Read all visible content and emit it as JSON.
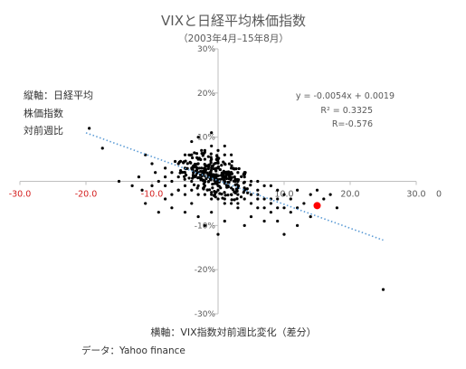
{
  "chart_data": {
    "type": "scatter",
    "title": "VIXと日経平均株価指数",
    "subtitle": "（2003年4月–15年8月）",
    "ylabel_lines": [
      "縦軸：日経平均",
      "株価指数",
      "対前週比"
    ],
    "xlabel": "横軸：VIX指数対前週比変化（差分）",
    "source": "データ：Yahoo finance",
    "xlim": [
      -30,
      30
    ],
    "ylim": [
      -30,
      30
    ],
    "x_ticks": [
      {
        "value": -30,
        "label": "-30.0"
      },
      {
        "value": -20,
        "label": "-20.0"
      },
      {
        "value": -10,
        "label": "-10.0"
      },
      {
        "value": 10,
        "label": "10.0"
      },
      {
        "value": 20,
        "label": "20.0"
      },
      {
        "value": 30,
        "label": "30.0"
      }
    ],
    "x_axis_stray_label": "0",
    "y_ticks": [
      {
        "value": 30,
        "label": "30%"
      },
      {
        "value": 20,
        "label": "20%"
      },
      {
        "value": 10,
        "label": "10%"
      },
      {
        "value": -10,
        "label": "-10%"
      },
      {
        "value": -20,
        "label": "-20%"
      },
      {
        "value": -30,
        "label": "-30%"
      }
    ],
    "grid": false,
    "trendline": {
      "equation": "y = -0.0054x + 0.0019",
      "r_squared": "R² = 0.3325",
      "r": "R=-0.576",
      "slope": -0.54,
      "intercept": 0.19,
      "x_range": [
        -20,
        25
      ]
    },
    "highlight_point": {
      "x": 15,
      "y": -5.5,
      "color": "#ff0000"
    },
    "colors": {
      "points": "#000000",
      "trendline": "#5b9bd5",
      "axes": "#bfbfbf",
      "red_labels": "#d42020"
    },
    "points": [
      [
        -19.5,
        12
      ],
      [
        -17.5,
        7.5
      ],
      [
        -11,
        6
      ],
      [
        -10,
        4
      ],
      [
        -6.5,
        4.5
      ],
      [
        -8,
        3
      ],
      [
        -12,
        1
      ],
      [
        -9,
        0
      ],
      [
        -10,
        -1
      ],
      [
        -6,
        -2
      ],
      [
        -8,
        -4
      ],
      [
        -4,
        -5
      ],
      [
        -7,
        0
      ],
      [
        -5,
        2
      ],
      [
        -3,
        4
      ],
      [
        -5,
        6
      ],
      [
        -4,
        9
      ],
      [
        -3,
        10
      ],
      [
        -2.5,
        7
      ],
      [
        -2,
        5
      ],
      [
        -1,
        11
      ],
      [
        -1,
        8
      ],
      [
        0,
        7
      ],
      [
        1,
        8
      ],
      [
        2,
        6
      ],
      [
        -3.5,
        1
      ],
      [
        -2,
        -3
      ],
      [
        -1,
        -4
      ],
      [
        1,
        -5
      ],
      [
        3,
        -6
      ],
      [
        5,
        -5
      ],
      [
        6,
        -4
      ],
      [
        8,
        -4
      ],
      [
        9,
        -6
      ],
      [
        11,
        -4
      ],
      [
        12,
        -6
      ],
      [
        13,
        -5
      ],
      [
        18,
        -6
      ],
      [
        10,
        -12
      ],
      [
        5,
        -8
      ],
      [
        4,
        -10
      ],
      [
        7,
        -9
      ],
      [
        1,
        -9
      ],
      [
        -1,
        -7
      ],
      [
        25,
        -24.5
      ],
      [
        -15,
        0
      ],
      [
        -13,
        -1
      ],
      [
        -11.5,
        -2
      ],
      [
        -9.5,
        2
      ],
      [
        -7,
        -6
      ],
      [
        -5,
        -7
      ],
      [
        -3,
        -8
      ],
      [
        0,
        -12
      ],
      [
        -2,
        -10
      ],
      [
        3,
        -3
      ],
      [
        2,
        2
      ],
      [
        4,
        1
      ],
      [
        6,
        -2
      ],
      [
        8,
        -1
      ],
      [
        9,
        -2
      ],
      [
        10,
        -3
      ],
      [
        12,
        -2
      ],
      [
        14,
        -3
      ],
      [
        15,
        -2
      ],
      [
        16,
        -4
      ],
      [
        17,
        -3
      ],
      [
        2,
        -1.5
      ],
      [
        3,
        0
      ],
      [
        4,
        -2
      ],
      [
        5,
        0
      ],
      [
        6,
        0
      ],
      [
        7,
        -1
      ],
      [
        0,
        -1
      ],
      [
        1,
        0
      ],
      [
        -1,
        1
      ],
      [
        -2,
        2
      ],
      [
        -3,
        -1
      ],
      [
        -4,
        0
      ],
      [
        -5,
        -1
      ],
      [
        -6,
        1
      ],
      [
        0,
        3
      ],
      [
        1,
        4
      ],
      [
        2,
        3
      ],
      [
        -1,
        3
      ],
      [
        -2,
        -1
      ],
      [
        -3,
        2
      ],
      [
        0,
        0
      ],
      [
        0.5,
        0.5
      ],
      [
        1.5,
        -1
      ],
      [
        -0.5,
        -0.5
      ],
      [
        2.5,
        1
      ],
      [
        -1.5,
        1.5
      ],
      [
        1,
        2
      ],
      [
        -2,
        0
      ],
      [
        3,
        -1.5
      ],
      [
        -2.5,
        3
      ],
      [
        0,
        -2
      ],
      [
        2,
        -3
      ],
      [
        -1,
        -2.5
      ],
      [
        1,
        1
      ],
      [
        -4,
        3
      ],
      [
        4,
        -4
      ],
      [
        5,
        -3
      ],
      [
        -5,
        3
      ],
      [
        6,
        -3
      ],
      [
        -6,
        4
      ],
      [
        7,
        -4
      ],
      [
        -7,
        2
      ],
      [
        8,
        -5
      ],
      [
        -8,
        1
      ],
      [
        9,
        -4
      ],
      [
        10,
        -6
      ],
      [
        11,
        -7
      ],
      [
        -3,
        5
      ],
      [
        -4,
        6
      ],
      [
        -2,
        7
      ],
      [
        3,
        2
      ],
      [
        4,
        2
      ],
      [
        -1,
        5
      ],
      [
        0,
        5
      ],
      [
        1,
        6
      ],
      [
        -3,
        -3
      ],
      [
        -4,
        -2
      ],
      [
        -5,
        -3
      ],
      [
        3,
        -5
      ],
      [
        2,
        -5
      ],
      [
        1,
        -4
      ],
      [
        0,
        -4
      ],
      [
        -1,
        -3
      ],
      [
        -6,
        -2
      ],
      [
        -7,
        -3
      ],
      [
        -8,
        -1
      ],
      [
        6,
        -6
      ],
      [
        7,
        -6
      ],
      [
        8,
        -7
      ],
      [
        12,
        -10
      ],
      [
        9,
        -9
      ],
      [
        14,
        -8
      ],
      [
        -11,
        -5
      ],
      [
        -9,
        -7
      ]
    ]
  }
}
